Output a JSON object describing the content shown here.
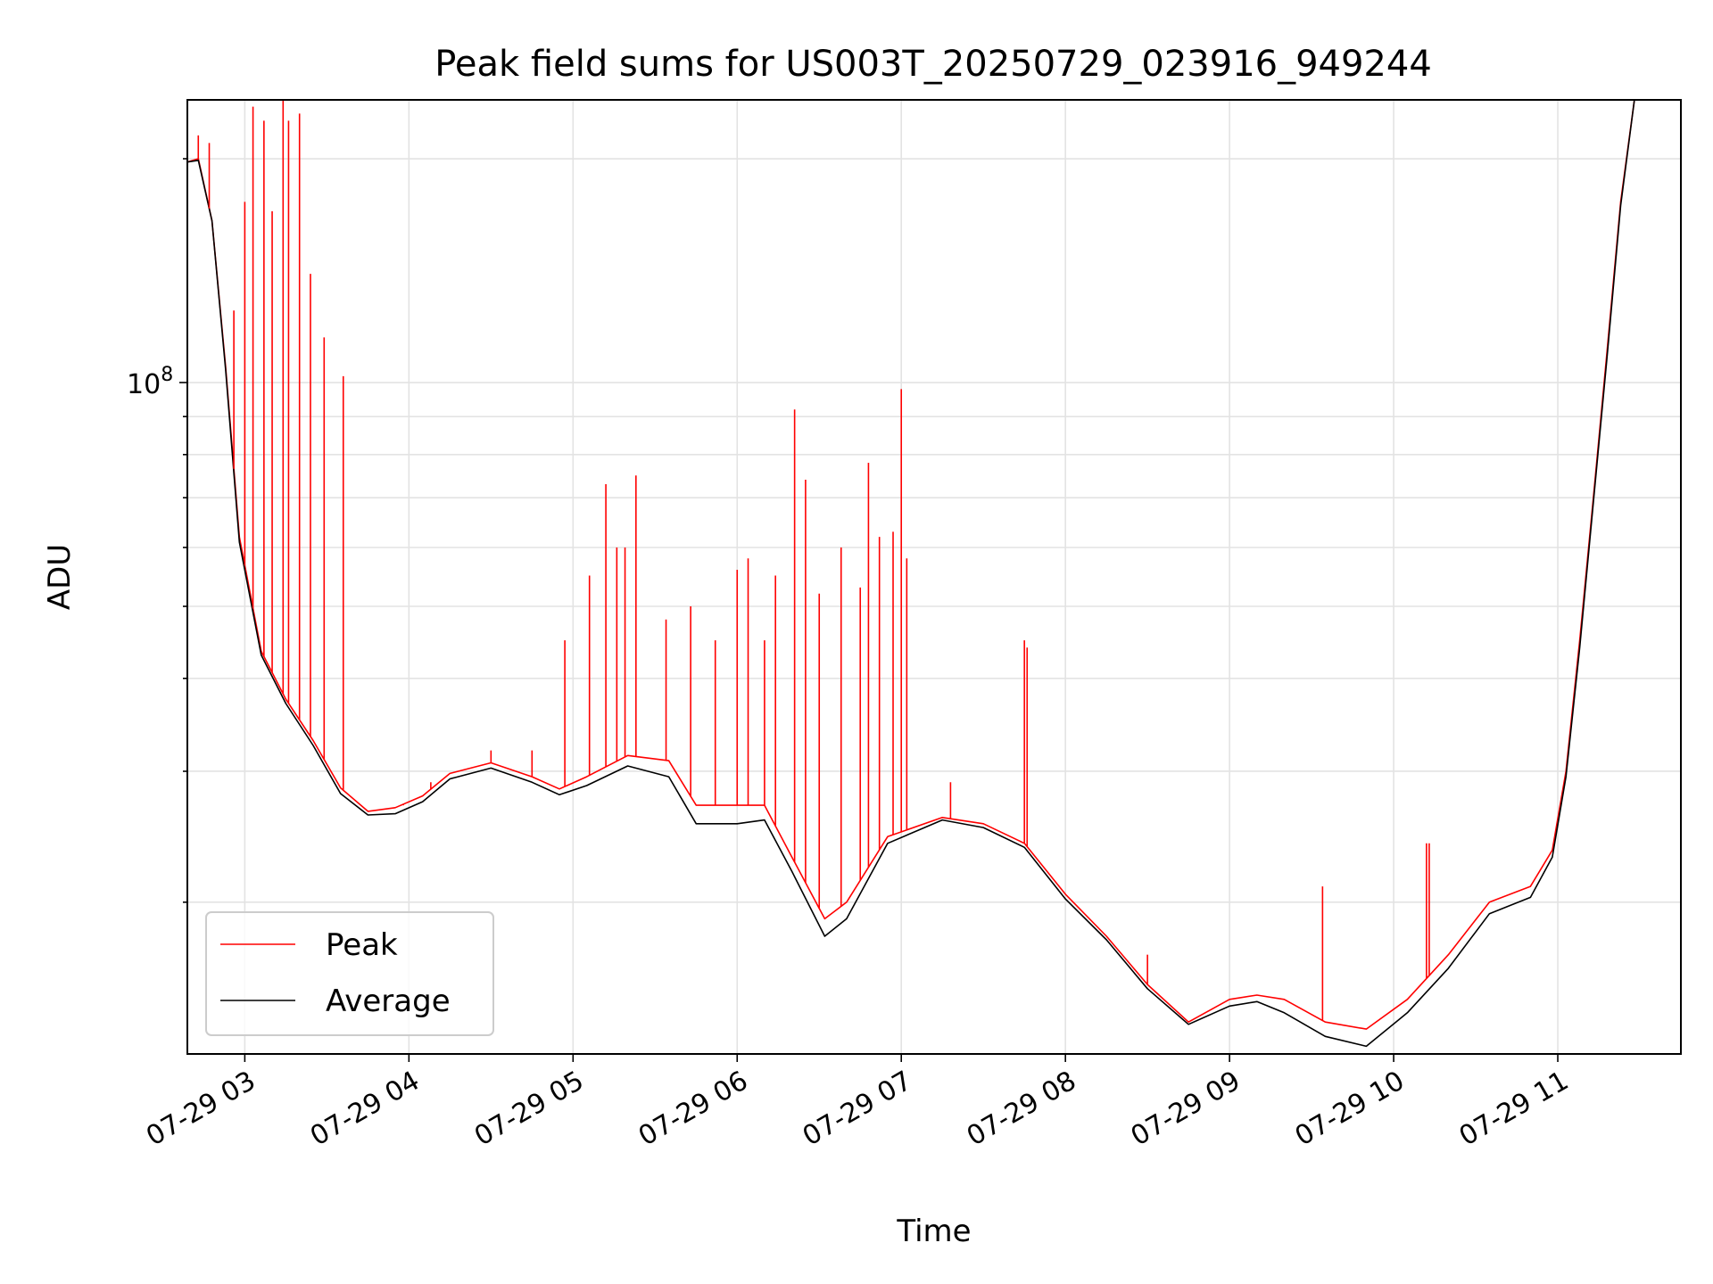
{
  "chart_data": {
    "type": "line",
    "title": "Peak field sums for US003T_20250729_023916_949244",
    "xlabel": "Time",
    "ylabel": "ADU",
    "y_scale": "log",
    "ylim": [
      12500000,
      240000000
    ],
    "xlim": [
      "2025-07-29 02:39",
      "2025-07-29 11:45"
    ],
    "x_ticks": [
      {
        "value": "2025-07-29 03:00",
        "label": "07-29 03"
      },
      {
        "value": "2025-07-29 04:00",
        "label": "07-29 04"
      },
      {
        "value": "2025-07-29 05:00",
        "label": "07-29 05"
      },
      {
        "value": "2025-07-29 06:00",
        "label": "07-29 06"
      },
      {
        "value": "2025-07-29 07:00",
        "label": "07-29 07"
      },
      {
        "value": "2025-07-29 08:00",
        "label": "07-29 08"
      },
      {
        "value": "2025-07-29 09:00",
        "label": "07-29 09"
      },
      {
        "value": "2025-07-29 10:00",
        "label": "07-29 10"
      },
      {
        "value": "2025-07-29 11:00",
        "label": "07-29 11"
      }
    ],
    "y_ticks": [
      {
        "value": 100000000,
        "label_base": "10",
        "label_exp": "8"
      }
    ],
    "grid": true,
    "legend_position": "lower-left",
    "series": [
      {
        "name": "Peak",
        "color": "#ff0000",
        "points": [
          [
            "2025-07-29 02:39",
            198000000
          ],
          [
            "2025-07-29 02:43",
            200000000
          ],
          [
            "2025-07-29 02:48",
            165000000
          ],
          [
            "2025-07-29 02:53",
            105000000
          ],
          [
            "2025-07-29 02:58",
            62000000
          ],
          [
            "2025-07-29 03:06",
            43500000
          ],
          [
            "2025-07-29 03:15",
            37500000
          ],
          [
            "2025-07-29 03:25",
            33000000
          ],
          [
            "2025-07-29 03:35",
            28500000
          ],
          [
            "2025-07-29 03:45",
            26500000
          ],
          [
            "2025-07-29 03:55",
            26800000
          ],
          [
            "2025-07-29 04:05",
            27800000
          ],
          [
            "2025-07-29 04:15",
            29800000
          ],
          [
            "2025-07-29 04:30",
            30800000
          ],
          [
            "2025-07-29 04:45",
            29500000
          ],
          [
            "2025-07-29 04:55",
            28400000
          ],
          [
            "2025-07-29 05:05",
            29500000
          ],
          [
            "2025-07-29 05:20",
            31500000
          ],
          [
            "2025-07-29 05:35",
            31000000
          ],
          [
            "2025-07-29 05:45",
            27000000
          ],
          [
            "2025-07-29 06:00",
            27000000
          ],
          [
            "2025-07-29 06:10",
            27000000
          ],
          [
            "2025-07-29 06:20",
            23000000
          ],
          [
            "2025-07-29 06:32",
            19000000
          ],
          [
            "2025-07-29 06:40",
            20000000
          ],
          [
            "2025-07-29 06:55",
            24500000
          ],
          [
            "2025-07-29 07:15",
            26000000
          ],
          [
            "2025-07-29 07:30",
            25500000
          ],
          [
            "2025-07-29 07:45",
            24000000
          ],
          [
            "2025-07-29 08:00",
            20500000
          ],
          [
            "2025-07-29 08:15",
            18000000
          ],
          [
            "2025-07-29 08:30",
            15500000
          ],
          [
            "2025-07-29 08:45",
            13800000
          ],
          [
            "2025-07-29 09:00",
            14800000
          ],
          [
            "2025-07-29 09:10",
            15000000
          ],
          [
            "2025-07-29 09:20",
            14800000
          ],
          [
            "2025-07-29 09:35",
            13800000
          ],
          [
            "2025-07-29 09:50",
            13500000
          ],
          [
            "2025-07-29 10:05",
            14800000
          ],
          [
            "2025-07-29 10:20",
            17000000
          ],
          [
            "2025-07-29 10:35",
            20000000
          ],
          [
            "2025-07-29 10:50",
            21000000
          ],
          [
            "2025-07-29 10:58",
            23500000
          ],
          [
            "2025-07-29 11:03",
            30000000
          ],
          [
            "2025-07-29 11:08",
            45000000
          ],
          [
            "2025-07-29 11:13",
            70000000
          ],
          [
            "2025-07-29 11:18",
            110000000
          ],
          [
            "2025-07-29 11:23",
            175000000
          ],
          [
            "2025-07-29 11:28",
            240000000
          ],
          [
            "2025-07-29 11:32",
            240000000
          ]
        ],
        "spikes": [
          [
            "2025-07-29 02:43",
            215000000
          ],
          [
            "2025-07-29 02:47",
            210000000
          ],
          [
            "2025-07-29 02:56",
            125000000
          ],
          [
            "2025-07-29 03:00",
            175000000
          ],
          [
            "2025-07-29 03:03",
            235000000
          ],
          [
            "2025-07-29 03:07",
            225000000
          ],
          [
            "2025-07-29 03:10",
            170000000
          ],
          [
            "2025-07-29 03:14",
            240000000
          ],
          [
            "2025-07-29 03:16",
            225000000
          ],
          [
            "2025-07-29 03:20",
            230000000
          ],
          [
            "2025-07-29 03:24",
            140000000
          ],
          [
            "2025-07-29 03:29",
            115000000
          ],
          [
            "2025-07-29 03:36",
            102000000
          ],
          [
            "2025-07-29 03:58",
            27000000
          ],
          [
            "2025-07-29 04:08",
            29000000
          ],
          [
            "2025-07-29 04:30",
            32000000
          ],
          [
            "2025-07-29 04:45",
            32000000
          ],
          [
            "2025-07-29 04:57",
            45000000
          ],
          [
            "2025-07-29 05:06",
            55000000
          ],
          [
            "2025-07-29 05:12",
            73000000
          ],
          [
            "2025-07-29 05:16",
            60000000
          ],
          [
            "2025-07-29 05:19",
            60000000
          ],
          [
            "2025-07-29 05:23",
            75000000
          ],
          [
            "2025-07-29 05:34",
            48000000
          ],
          [
            "2025-07-29 05:43",
            50000000
          ],
          [
            "2025-07-29 05:52",
            45000000
          ],
          [
            "2025-07-29 06:00",
            56000000
          ],
          [
            "2025-07-29 06:04",
            58000000
          ],
          [
            "2025-07-29 06:10",
            45000000
          ],
          [
            "2025-07-29 06:14",
            55000000
          ],
          [
            "2025-07-29 06:21",
            92000000
          ],
          [
            "2025-07-29 06:25",
            74000000
          ],
          [
            "2025-07-29 06:30",
            52000000
          ],
          [
            "2025-07-29 06:38",
            60000000
          ],
          [
            "2025-07-29 06:45",
            53000000
          ],
          [
            "2025-07-29 06:48",
            78000000
          ],
          [
            "2025-07-29 06:52",
            62000000
          ],
          [
            "2025-07-29 06:57",
            63000000
          ],
          [
            "2025-07-29 07:00",
            98000000
          ],
          [
            "2025-07-29 07:02",
            58000000
          ],
          [
            "2025-07-29 07:18",
            29000000
          ],
          [
            "2025-07-29 07:45",
            45000000
          ],
          [
            "2025-07-29 07:46",
            44000000
          ],
          [
            "2025-07-29 08:30",
            17000000
          ],
          [
            "2025-07-29 09:34",
            21000000
          ],
          [
            "2025-07-29 10:12",
            24000000
          ],
          [
            "2025-07-29 10:13",
            24000000
          ]
        ]
      },
      {
        "name": "Average",
        "color": "#000000",
        "points": [
          [
            "2025-07-29 02:39",
            198000000
          ],
          [
            "2025-07-29 02:43",
            199000000
          ],
          [
            "2025-07-29 02:48",
            165000000
          ],
          [
            "2025-07-29 02:53",
            104000000
          ],
          [
            "2025-07-29 02:58",
            61000000
          ],
          [
            "2025-07-29 03:06",
            43000000
          ],
          [
            "2025-07-29 03:15",
            37000000
          ],
          [
            "2025-07-29 03:25",
            32500000
          ],
          [
            "2025-07-29 03:35",
            28000000
          ],
          [
            "2025-07-29 03:45",
            26200000
          ],
          [
            "2025-07-29 03:55",
            26300000
          ],
          [
            "2025-07-29 04:05",
            27300000
          ],
          [
            "2025-07-29 04:15",
            29300000
          ],
          [
            "2025-07-29 04:30",
            30300000
          ],
          [
            "2025-07-29 04:45",
            29000000
          ],
          [
            "2025-07-29 04:55",
            27900000
          ],
          [
            "2025-07-29 05:05",
            28700000
          ],
          [
            "2025-07-29 05:20",
            30500000
          ],
          [
            "2025-07-29 05:35",
            29500000
          ],
          [
            "2025-07-29 05:45",
            25500000
          ],
          [
            "2025-07-29 06:00",
            25500000
          ],
          [
            "2025-07-29 06:10",
            25800000
          ],
          [
            "2025-07-29 06:20",
            22000000
          ],
          [
            "2025-07-29 06:32",
            18000000
          ],
          [
            "2025-07-29 06:40",
            19000000
          ],
          [
            "2025-07-29 06:55",
            24000000
          ],
          [
            "2025-07-29 07:15",
            25800000
          ],
          [
            "2025-07-29 07:30",
            25200000
          ],
          [
            "2025-07-29 07:45",
            23700000
          ],
          [
            "2025-07-29 08:00",
            20200000
          ],
          [
            "2025-07-29 08:15",
            17800000
          ],
          [
            "2025-07-29 08:30",
            15300000
          ],
          [
            "2025-07-29 08:45",
            13700000
          ],
          [
            "2025-07-29 09:00",
            14500000
          ],
          [
            "2025-07-29 09:10",
            14700000
          ],
          [
            "2025-07-29 09:20",
            14200000
          ],
          [
            "2025-07-29 09:35",
            13200000
          ],
          [
            "2025-07-29 09:50",
            12800000
          ],
          [
            "2025-07-29 10:05",
            14200000
          ],
          [
            "2025-07-29 10:20",
            16300000
          ],
          [
            "2025-07-29 10:35",
            19300000
          ],
          [
            "2025-07-29 10:50",
            20300000
          ],
          [
            "2025-07-29 10:58",
            23000000
          ],
          [
            "2025-07-29 11:03",
            29500000
          ],
          [
            "2025-07-29 11:08",
            44000000
          ],
          [
            "2025-07-29 11:13",
            69000000
          ],
          [
            "2025-07-29 11:18",
            108000000
          ],
          [
            "2025-07-29 11:23",
            173000000
          ],
          [
            "2025-07-29 11:28",
            240000000
          ],
          [
            "2025-07-29 11:32",
            240000000
          ]
        ]
      }
    ]
  }
}
